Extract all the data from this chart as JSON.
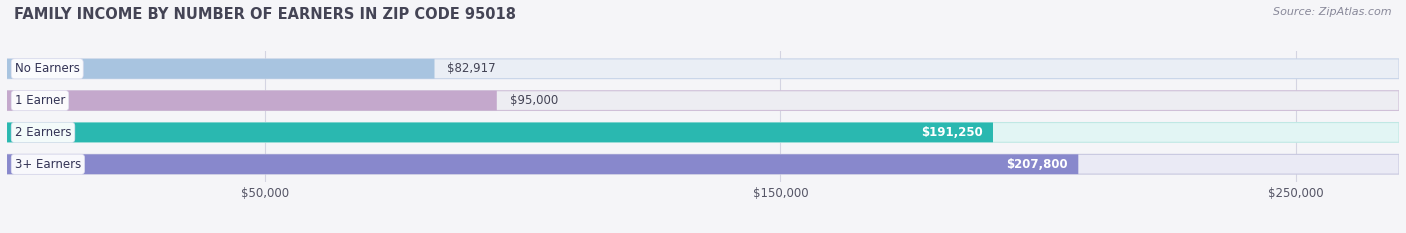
{
  "title": "FAMILY INCOME BY NUMBER OF EARNERS IN ZIP CODE 95018",
  "source": "Source: ZipAtlas.com",
  "categories": [
    "No Earners",
    "1 Earner",
    "2 Earners",
    "3+ Earners"
  ],
  "values": [
    82917,
    95000,
    191250,
    207800
  ],
  "labels": [
    "$82,917",
    "$95,000",
    "$191,250",
    "$207,800"
  ],
  "bar_colors": [
    "#a8c4e0",
    "#c4a8cc",
    "#2ab8b0",
    "#8888cc"
  ],
  "bar_bg_colors": [
    "#eaeef5",
    "#ededf2",
    "#e2f5f4",
    "#eaeaf5"
  ],
  "bar_border_colors": [
    "#c8d4e8",
    "#d0c0d8",
    "#c0e8e4",
    "#c8c8e0"
  ],
  "xlim": [
    0,
    270000
  ],
  "xticks": [
    50000,
    150000,
    250000
  ],
  "xtick_labels": [
    "$50,000",
    "$150,000",
    "$250,000"
  ],
  "title_color": "#444455",
  "title_fontsize": 10.5,
  "source_fontsize": 8,
  "label_fontsize": 8.5,
  "bar_label_fontsize": 8.5,
  "category_fontsize": 8.5,
  "background_color": "#f5f5f8"
}
